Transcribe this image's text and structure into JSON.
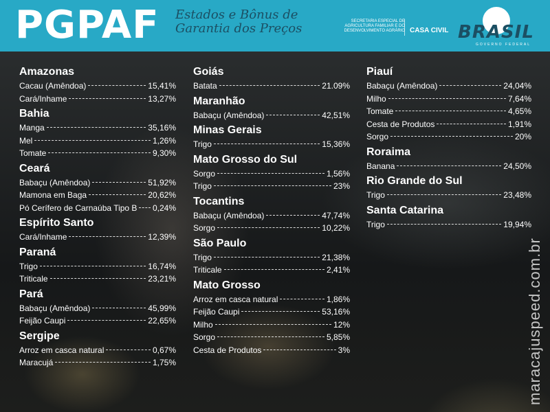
{
  "header": {
    "brand": "PGPAF",
    "subtitle_line1": "Estados e Bônus de",
    "subtitle_line2": "Garantia dos Preços",
    "secretaria_line1": "SECRETARIA ESPECIAL DE",
    "secretaria_line2": "AGRICULTURA FAMILIAR E DO",
    "secretaria_line3": "DESENVOLVIMENTO AGRÁRIO",
    "casa_civil": "CASA CIVIL",
    "logo_text": "BRASIL",
    "logo_sub": "GOVERNO FEDERAL"
  },
  "columns": [
    [
      {
        "state": "Amazonas",
        "items": [
          {
            "label": "Cacau (Amêndoa)",
            "value": "15,41%"
          },
          {
            "label": "Cará/Inhame",
            "value": "13,27%"
          }
        ]
      },
      {
        "state": "Bahia",
        "items": [
          {
            "label": "Manga",
            "value": "35,16%"
          },
          {
            "label": "Mel",
            "value": "1,26%"
          },
          {
            "label": "Tomate",
            "value": "9,30%"
          }
        ]
      },
      {
        "state": "Ceará",
        "items": [
          {
            "label": "Babaçu (Amêndoa)",
            "value": "51,92%"
          },
          {
            "label": "Mamona em Baga",
            "value": "20,62%"
          },
          {
            "label": "Pó Cerífero de Carnaúba Tipo B",
            "value": "0,24%"
          }
        ]
      },
      {
        "state": "Espírito Santo",
        "items": [
          {
            "label": "Cará/Inhame",
            "value": "12,39%"
          }
        ]
      },
      {
        "state": "Paraná",
        "items": [
          {
            "label": "Trigo",
            "value": "16,74%"
          },
          {
            "label": "Triticale",
            "value": "23,21%"
          }
        ]
      },
      {
        "state": "Pará",
        "items": [
          {
            "label": "Babaçu (Amêndoa)",
            "value": "45,99%"
          },
          {
            "label": "Feijão Caupi",
            "value": "22,65%"
          }
        ]
      },
      {
        "state": "Sergipe",
        "items": [
          {
            "label": "Arroz em casca natural",
            "value": "0,67%"
          },
          {
            "label": "Maracujá",
            "value": "1,75%"
          }
        ]
      }
    ],
    [
      {
        "state": "Goiás",
        "items": [
          {
            "label": "Batata",
            "value": "21.09%"
          }
        ]
      },
      {
        "state": "Maranhão",
        "items": [
          {
            "label": "Babaçu (Amêndoa)",
            "value": "42,51%"
          }
        ]
      },
      {
        "state": "Minas Gerais",
        "items": [
          {
            "label": "Trigo",
            "value": "15,36%"
          }
        ]
      },
      {
        "state": "Mato Grosso do Sul",
        "items": [
          {
            "label": "Sorgo",
            "value": "1,56%"
          },
          {
            "label": "Trigo",
            "value": "23%"
          }
        ]
      },
      {
        "state": "Tocantins",
        "items": [
          {
            "label": "Babaçu (Amêndoa)",
            "value": "47,74%"
          },
          {
            "label": "Sorgo",
            "value": "10,22%"
          }
        ]
      },
      {
        "state": "São Paulo",
        "items": [
          {
            "label": "Trigo",
            "value": "21,38%"
          },
          {
            "label": "Triticale",
            "value": "2,41%"
          }
        ]
      },
      {
        "state": "Mato Grosso",
        "items": [
          {
            "label": "Arroz em casca natural",
            "value": "1,86%"
          },
          {
            "label": "Feijão Caupi",
            "value": "53,16%"
          },
          {
            "label": "Milho",
            "value": "12%"
          },
          {
            "label": "Sorgo",
            "value": "5,85%"
          },
          {
            "label": "Cesta de Produtos",
            "value": "3%"
          }
        ]
      }
    ],
    [
      {
        "state": "Piauí",
        "items": [
          {
            "label": "Babaçu (Amêndoa)",
            "value": "24,04%"
          },
          {
            "label": "Milho",
            "value": "7,64%"
          },
          {
            "label": "Tomate",
            "value": "4,65%"
          },
          {
            "label": "Cesta de Produtos",
            "value": "1,91%"
          },
          {
            "label": "Sorgo",
            "value": "20%"
          }
        ]
      },
      {
        "state": "Roraima",
        "items": [
          {
            "label": "Banana",
            "value": "24,50%"
          }
        ]
      },
      {
        "state": "Rio Grande do Sul",
        "items": [
          {
            "label": "Trigo",
            "value": "23,48%"
          }
        ]
      },
      {
        "state": "Santa Catarina",
        "items": [
          {
            "label": "Trigo",
            "value": "19,94%"
          }
        ]
      }
    ]
  ],
  "watermark": "maracajuspeed.com.br",
  "colors": {
    "header_bg": "#28a9c6",
    "subtitle": "#1b4f63",
    "text": "#ffffff"
  }
}
